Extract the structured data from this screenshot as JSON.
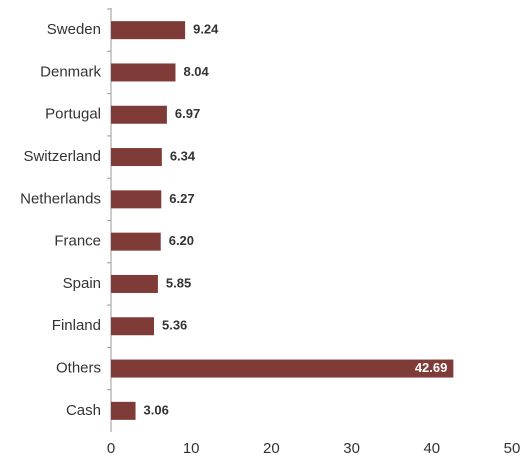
{
  "chart_data": {
    "type": "hbar",
    "categories": [
      "Sweden",
      "Denmark",
      "Portugal",
      "Switzerland",
      "Netherlands",
      "France",
      "Spain",
      "Finland",
      "Others",
      "Cash"
    ],
    "values": [
      9.24,
      8.04,
      6.97,
      6.34,
      6.27,
      6.2,
      5.85,
      5.36,
      42.69,
      3.06
    ],
    "value_labels": [
      "9.24",
      "8.04",
      "6.97",
      "6.34",
      "6.27",
      "6.20",
      "5.85",
      "5.36",
      "42.69",
      "3.06"
    ],
    "color": "#7f3b38",
    "xlim": [
      0,
      50
    ],
    "xticks": [
      0,
      10,
      20,
      30,
      40,
      50
    ],
    "grid": false
  }
}
